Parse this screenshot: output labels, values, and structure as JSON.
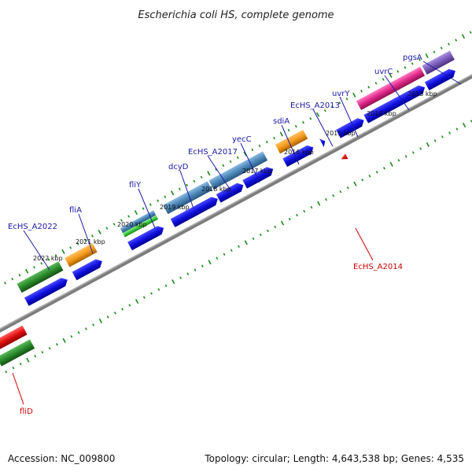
{
  "title": "Escherichia coli HS, complete genome",
  "footer": {
    "accession": "Accession: NC_009800",
    "topology": "Topology: circular; Length: 4,643,538 bp; Genes: 4,535"
  },
  "scale_labels": [
    "2013 kbp",
    "2014 kbp",
    "2015 kbp",
    "2016 kbp",
    "2017 kbp",
    "2018 kbp",
    "2019 kbp",
    "2020 kbp",
    "2021 kbp",
    "2022 kbp"
  ],
  "genes": {
    "pgsA": "pgsA",
    "uvrC": "uvrC",
    "uvrY": "uvrY",
    "EcHS_A2013": "EcHS_A2013",
    "sdiA": "sdiA",
    "yecC": "yecC",
    "EcHS_A2017": "EcHS_A2017",
    "dcyD": "dcyD",
    "fliY": "fliY",
    "fliA": "fliA",
    "EcHS_A2022": "EcHS_A2022",
    "EcHS_A2014": "EcHS_A2014",
    "fliD": "fliD"
  },
  "colors": {
    "forward_strand": "#1010e0",
    "backbone": "#808080",
    "ticks": "#1a8a1a",
    "green": "#2a8a2a",
    "orange": "#f59a1a",
    "steelblue": "#4a86b8",
    "magenta": "#e0288a",
    "purple": "#7a5ab8",
    "red": "#e01010",
    "label_blue": "#1a1aa8",
    "label_red": "#cc0000"
  }
}
